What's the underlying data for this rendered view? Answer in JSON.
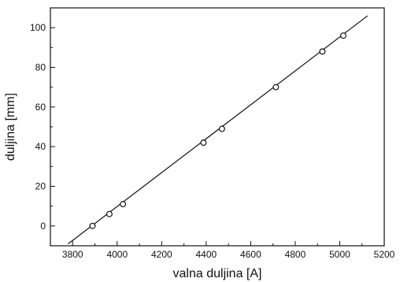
{
  "colors": {
    "axis": "#111111",
    "line": "#111111",
    "marker": "#111111",
    "background": "#ffffff"
  },
  "chart_data": {
    "type": "scatter",
    "title": "",
    "xlabel": "valna duljina [A]",
    "ylabel": "duljina [mm]",
    "xlim": [
      3700,
      5200
    ],
    "ylim": [
      -10,
      110
    ],
    "xticks": [
      3800,
      4000,
      4200,
      4400,
      4600,
      4800,
      5000,
      5200
    ],
    "yticks": [
      0,
      20,
      40,
      60,
      80,
      100
    ],
    "xtick_labels": [
      "3800",
      "4000",
      "4200",
      "4400",
      "4600",
      "4800",
      "5000",
      "5200"
    ],
    "ytick_labels": [
      "0",
      "20",
      "40",
      "60",
      "80",
      "100"
    ],
    "grid": false,
    "legend": "none",
    "series": [
      {
        "marker": "open-circle",
        "x": [
          3889,
          3965,
          4026,
          4388,
          4471,
          4713,
          4922,
          5016
        ],
        "y": [
          0,
          6,
          11,
          42,
          49,
          70,
          88,
          96
        ]
      }
    ],
    "fit_line": {
      "x": [
        3780,
        5125
      ],
      "y": [
        -9,
        106
      ]
    }
  }
}
